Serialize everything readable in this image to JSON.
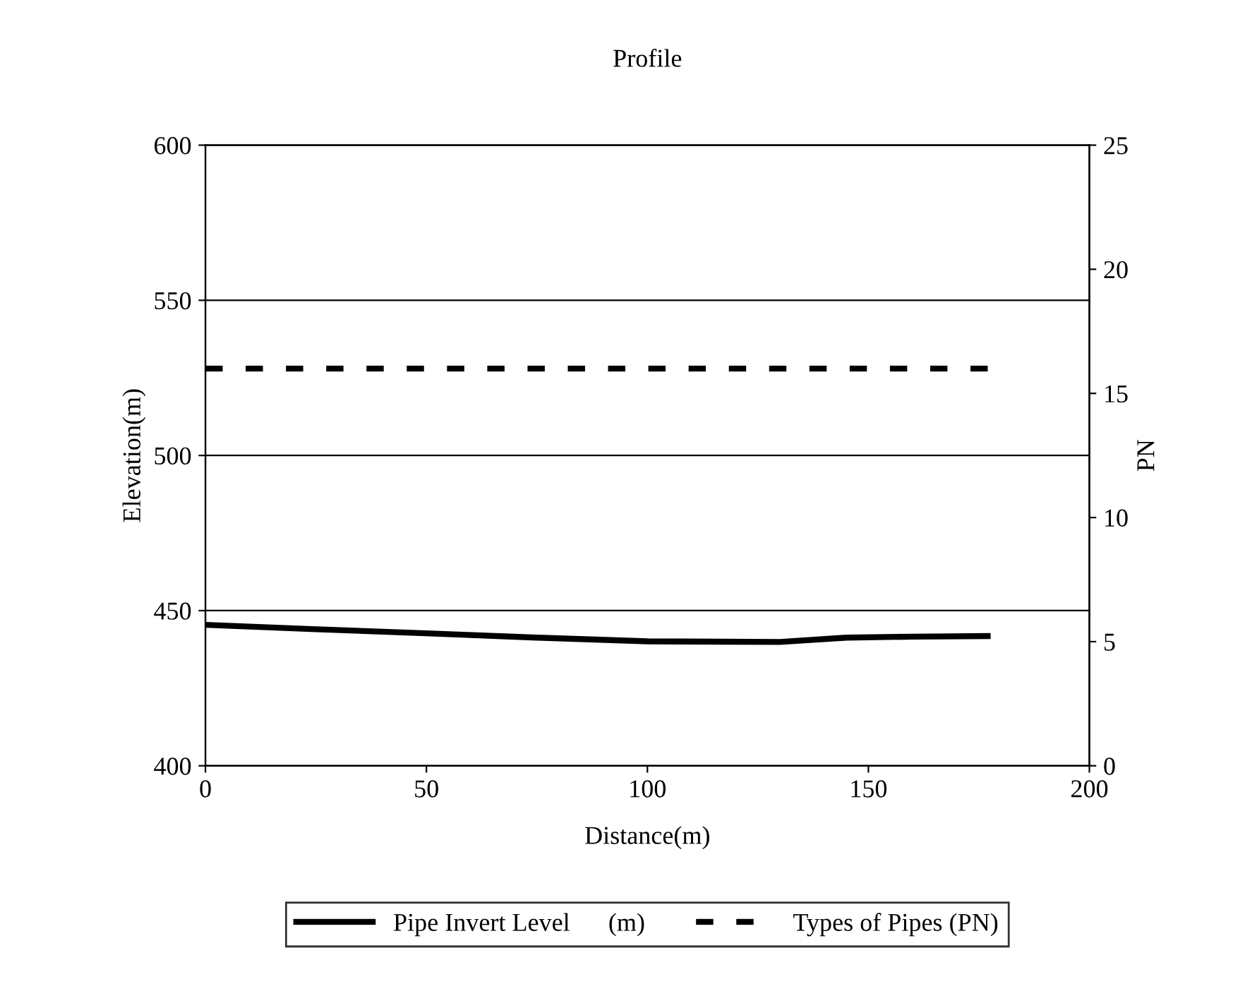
{
  "chart_data": {
    "type": "line",
    "title": "Profile",
    "xlabel": "Distance(m)",
    "ylabel": "Elevation(m)",
    "y2label": "PN",
    "xlim": [
      0,
      200
    ],
    "xticks": [
      0,
      50,
      100,
      150,
      200
    ],
    "ylim": [
      400,
      600
    ],
    "yticks": [
      400,
      450,
      500,
      550,
      600
    ],
    "y2lim": [
      0,
      25
    ],
    "y2ticks": [
      0,
      5,
      10,
      15,
      20,
      25
    ],
    "series": [
      {
        "name": "Pipe Invert Level      (m)",
        "color": "#000000",
        "line_style": "solid",
        "x": [
          0,
          25,
          50,
          75,
          100,
          130,
          145,
          160,
          177
        ],
        "values": [
          445.4,
          444.0,
          442.7,
          441.3,
          440.1,
          439.9,
          441.3,
          441.6,
          441.8
        ]
      },
      {
        "name": "Types of Pipes (PN)",
        "color": "#000000",
        "line_style": "dashed",
        "axis": "y2",
        "x": [
          0,
          177
        ],
        "values": [
          16,
          16
        ]
      }
    ],
    "grid": "y",
    "legend": "bottom"
  }
}
